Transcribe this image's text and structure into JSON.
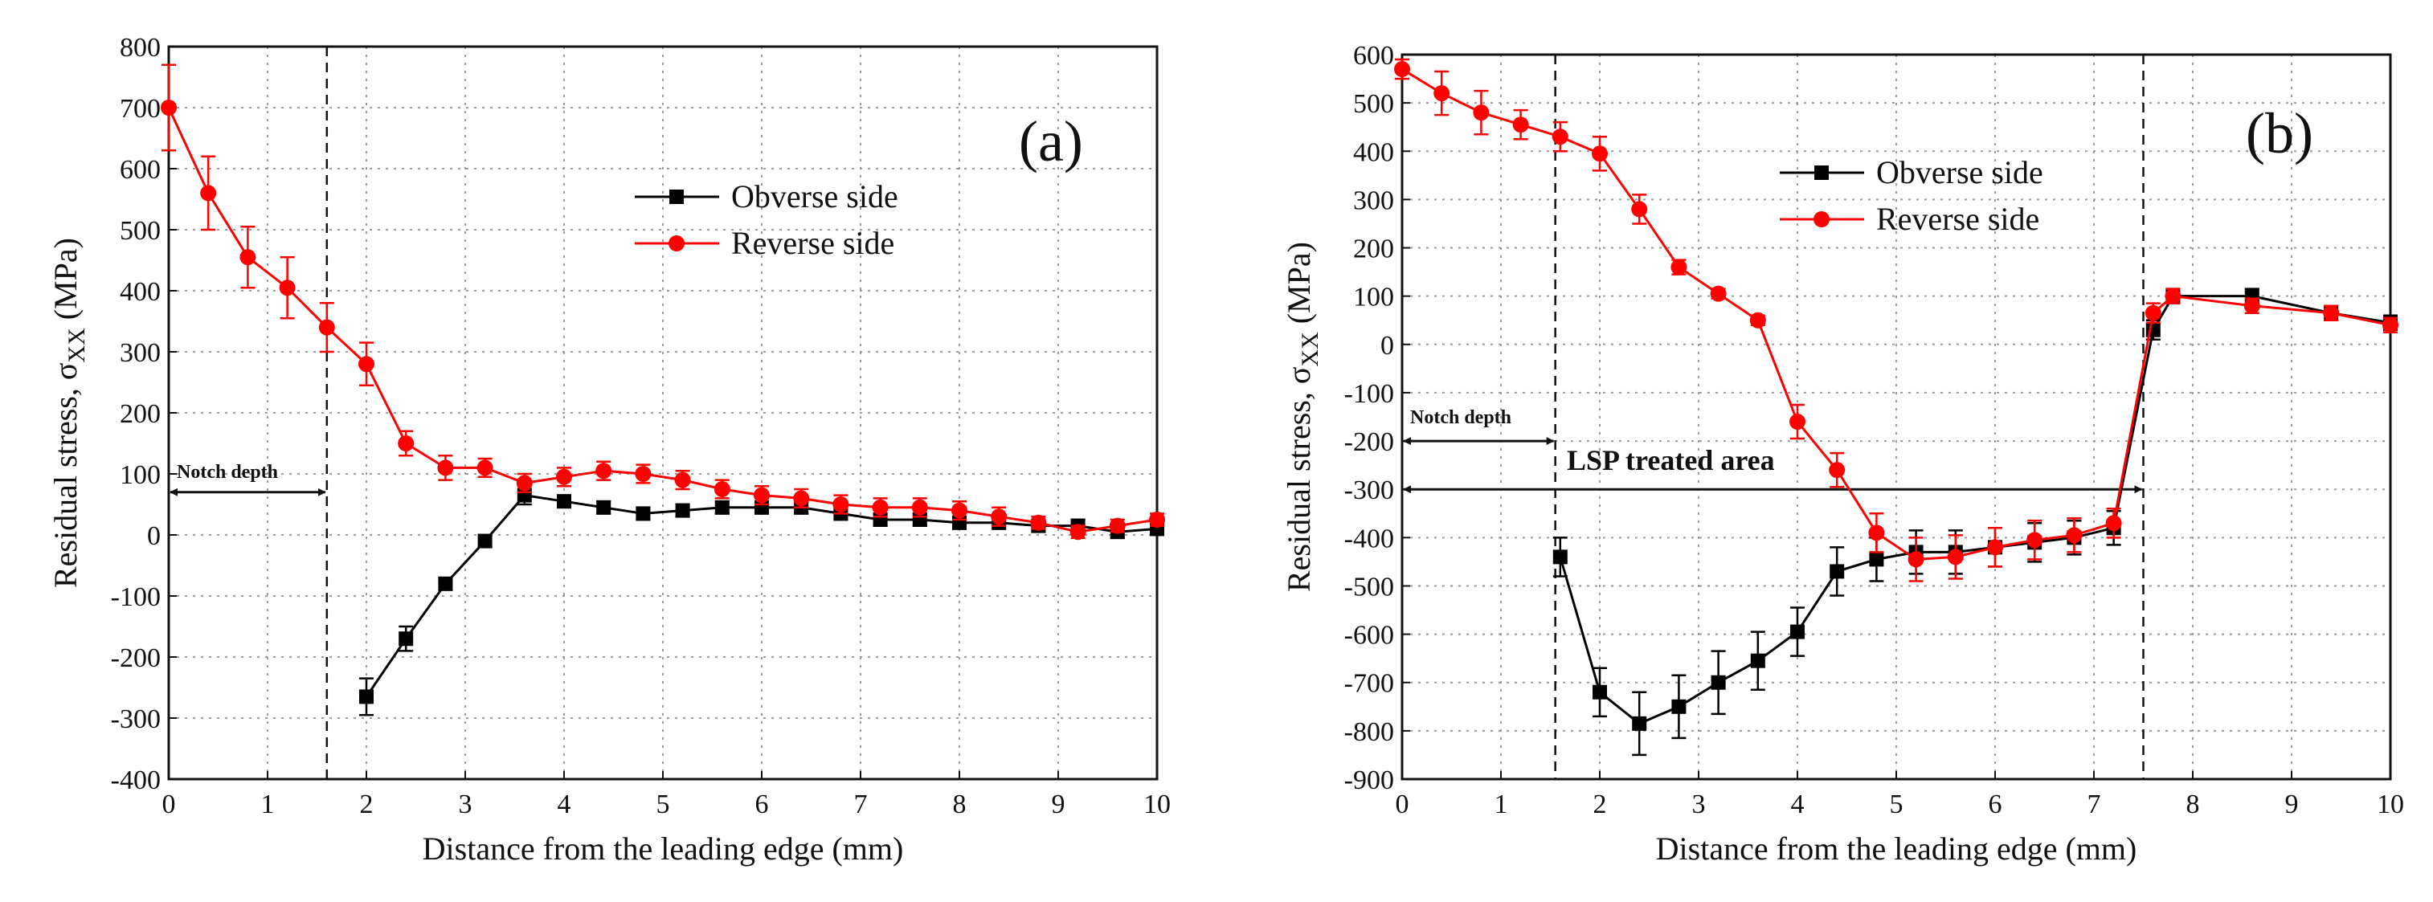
{
  "chart_data": [
    {
      "type": "line",
      "panel_label": "(a)",
      "xlabel": "Distance from the leading edge (mm)",
      "ylabel": "Residual stress, σ",
      "ylabel_sub": "XX",
      "ylabel_unit": " (MPa)",
      "xlim": [
        0,
        10
      ],
      "ylim": [
        -400,
        800
      ],
      "xticks": [
        0,
        1,
        2,
        3,
        4,
        5,
        6,
        7,
        8,
        9,
        10
      ],
      "yticks": [
        -400,
        -300,
        -200,
        -100,
        0,
        100,
        200,
        300,
        400,
        500,
        600,
        700,
        800
      ],
      "grid": true,
      "legend_position": "upper-middle",
      "annotations": [
        {
          "text": "Notch depth",
          "type": "dimension-arrow",
          "x_from": 0,
          "x_to": 1.6,
          "y": 70
        }
      ],
      "vlines": [
        1.6
      ],
      "series": [
        {
          "name": "Obverse side",
          "color": "#000000",
          "marker": "square",
          "x": [
            2.0,
            2.4,
            2.8,
            3.2,
            3.6,
            4.0,
            4.4,
            4.8,
            5.2,
            5.6,
            6.0,
            6.4,
            6.8,
            7.2,
            7.6,
            8.0,
            8.4,
            8.8,
            9.2,
            9.6,
            10.0
          ],
          "y": [
            -265,
            -170,
            -80,
            -10,
            65,
            55,
            45,
            35,
            40,
            45,
            45,
            45,
            35,
            25,
            25,
            20,
            20,
            15,
            15,
            5,
            10
          ],
          "err": [
            30,
            20,
            10,
            10,
            15,
            10,
            10,
            10,
            10,
            10,
            10,
            10,
            10,
            10,
            10,
            10,
            10,
            10,
            10,
            10,
            10
          ]
        },
        {
          "name": "Reverse side",
          "color": "#ff0000",
          "marker": "circle",
          "x": [
            0.0,
            0.4,
            0.8,
            1.2,
            1.6,
            2.0,
            2.4,
            2.8,
            3.2,
            3.6,
            4.0,
            4.4,
            4.8,
            5.2,
            5.6,
            6.0,
            6.4,
            6.8,
            7.2,
            7.6,
            8.0,
            8.4,
            8.8,
            9.2,
            9.6,
            10.0
          ],
          "y": [
            700,
            560,
            455,
            405,
            340,
            280,
            150,
            110,
            110,
            85,
            95,
            105,
            100,
            90,
            75,
            65,
            60,
            50,
            45,
            45,
            40,
            30,
            20,
            5,
            15,
            25
          ],
          "err": [
            70,
            60,
            50,
            50,
            40,
            35,
            20,
            20,
            15,
            15,
            15,
            15,
            15,
            15,
            15,
            15,
            15,
            15,
            15,
            15,
            15,
            15,
            10,
            10,
            10,
            10
          ]
        }
      ]
    },
    {
      "type": "line",
      "panel_label": "(b)",
      "xlabel": "Distance from the leading edge (mm)",
      "ylabel": "Residual stress, σ",
      "ylabel_sub": "XX",
      "ylabel_unit": " (MPa)",
      "xlim": [
        0,
        10
      ],
      "ylim": [
        -900,
        600
      ],
      "xticks": [
        0,
        1,
        2,
        3,
        4,
        5,
        6,
        7,
        8,
        9,
        10
      ],
      "yticks": [
        -900,
        -800,
        -700,
        -600,
        -500,
        -400,
        -300,
        -200,
        -100,
        0,
        100,
        200,
        300,
        400,
        500,
        600
      ],
      "grid": true,
      "legend_position": "upper-middle",
      "annotations": [
        {
          "text": "Notch depth",
          "type": "dimension-arrow",
          "x_from": 0,
          "x_to": 1.55,
          "y": -200
        },
        {
          "text": "LSP treated area",
          "type": "dimension-arrow",
          "x_from": 0,
          "x_to": 7.5,
          "y": -300
        }
      ],
      "vlines": [
        1.55,
        7.5
      ],
      "series": [
        {
          "name": "Obverse side",
          "color": "#000000",
          "marker": "square",
          "x": [
            1.6,
            2.0,
            2.4,
            2.8,
            3.2,
            3.6,
            4.0,
            4.4,
            4.8,
            5.2,
            5.6,
            6.0,
            6.4,
            6.8,
            7.2,
            7.6,
            7.8,
            8.6,
            9.4,
            10.0
          ],
          "y": [
            -440,
            -720,
            -785,
            -750,
            -700,
            -655,
            -595,
            -470,
            -445,
            -430,
            -430,
            -420,
            -410,
            -400,
            -380,
            30,
            100,
            100,
            65,
            45
          ],
          "err": [
            40,
            50,
            65,
            65,
            65,
            60,
            50,
            50,
            45,
            45,
            45,
            40,
            40,
            35,
            35,
            20,
            15,
            15,
            15,
            15
          ]
        },
        {
          "name": "Reverse side",
          "color": "#ff0000",
          "marker": "circle",
          "x": [
            0.0,
            0.4,
            0.8,
            1.2,
            1.6,
            2.0,
            2.4,
            2.8,
            3.2,
            3.6,
            4.0,
            4.4,
            4.8,
            5.2,
            5.6,
            6.0,
            6.4,
            6.8,
            7.2,
            7.6,
            7.8,
            8.6,
            9.4,
            10.0
          ],
          "y": [
            570,
            520,
            480,
            455,
            430,
            395,
            280,
            160,
            105,
            50,
            -160,
            -260,
            -390,
            -445,
            -440,
            -420,
            -405,
            -395,
            -370,
            65,
            100,
            80,
            65,
            40
          ],
          "err": [
            20,
            45,
            45,
            30,
            30,
            35,
            30,
            15,
            10,
            10,
            35,
            35,
            40,
            45,
            45,
            40,
            40,
            35,
            30,
            20,
            15,
            15,
            15,
            15
          ]
        }
      ]
    }
  ]
}
